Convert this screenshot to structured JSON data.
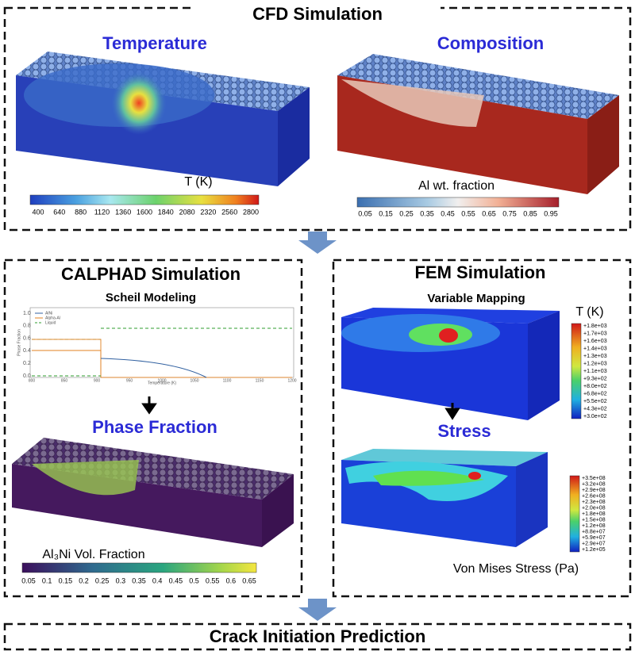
{
  "header": {
    "title": "CFD Simulation"
  },
  "cfd": {
    "temperature": {
      "title": "Temperature",
      "colorbar_label": "T (K)",
      "ticks": [
        "400",
        "640",
        "880",
        "1120",
        "1360",
        "1600",
        "1840",
        "2080",
        "2320",
        "2560",
        "2800"
      ]
    },
    "composition": {
      "title": "Composition",
      "colorbar_label": "Al wt. fraction",
      "ticks": [
        "0.05",
        "0.15",
        "0.25",
        "0.35",
        "0.45",
        "0.55",
        "0.65",
        "0.75",
        "0.85",
        "0.95"
      ]
    }
  },
  "calphad": {
    "title": "CALPHAD Simulation",
    "subtitle": "Scheil Modeling",
    "plot": {
      "legend": [
        "AlNi",
        "Alpha-Al",
        "Liquid"
      ],
      "x_label": "Temperature (K)",
      "y_label": "Phase Fraction",
      "xticks": [
        "800",
        "850",
        "900",
        "950",
        "1000",
        "1050",
        "1100",
        "1150",
        "1200"
      ],
      "yticks": [
        "1.0",
        "0.8",
        "0.6",
        "0.4",
        "0.2",
        "0.0"
      ]
    },
    "result_title": "Phase Fraction",
    "colorbar_label": "Al₃Ni Vol. Fraction",
    "ticks": [
      "0.05",
      "0.1",
      "0.15",
      "0.2",
      "0.25",
      "0.3",
      "0.35",
      "0.4",
      "0.45",
      "0.5",
      "0.55",
      "0.6",
      "0.65"
    ]
  },
  "fem": {
    "title": "FEM Simulation",
    "subtitle": "Variable Mapping",
    "temp_label": "T (K)",
    "temp_ticks": [
      "+1.8e+03",
      "+1.7e+03",
      "+1.6e+03",
      "+1.4e+03",
      "+1.3e+03",
      "+1.2e+03",
      "+1.1e+03",
      "+9.3e+02",
      "+8.0e+02",
      "+6.8e+02",
      "+5.5e+02",
      "+4.3e+02",
      "+3.0e+02"
    ],
    "stress_title": "Stress",
    "stress_ticks": [
      "+3.5e+08",
      "+3.2e+08",
      "+2.9e+08",
      "+2.6e+08",
      "+2.3e+08",
      "+2.0e+08",
      "+1.8e+08",
      "+1.5e+08",
      "+1.2e+08",
      "+8.8e+07",
      "+5.9e+07",
      "+2.9e+07",
      "+1.2e+05"
    ],
    "stress_label": "Von Mises Stress (Pa)"
  },
  "footer": {
    "title": "Crack Initiation Prediction"
  }
}
